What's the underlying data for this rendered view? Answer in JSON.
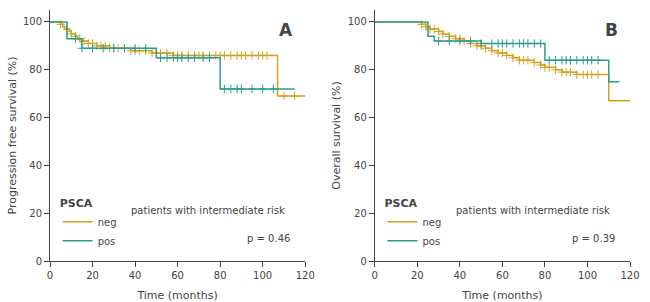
{
  "chart_data": [
    {
      "type": "step",
      "title": "A",
      "xlabel": "Time (months)",
      "ylabel": "Progression free survival (%)",
      "annotation": "patients with intermediate risk",
      "pvalue": "p = 0.46",
      "legend": "lower left",
      "legend_title": "PSCA",
      "grid": false,
      "xlim": [
        0,
        120
      ],
      "ylim": [
        0,
        105
      ],
      "xticks": [
        0,
        20,
        40,
        60,
        80,
        100,
        120
      ],
      "yticks": [
        0,
        20,
        40,
        60,
        80,
        100
      ],
      "series": [
        {
          "name": "neg",
          "color": "#D4A020",
          "marker": "cross",
          "x": [
            0,
            4,
            5,
            6,
            7,
            8,
            9,
            10,
            11,
            12,
            13,
            14,
            15,
            16,
            18,
            20,
            22,
            24,
            26,
            28,
            30,
            32,
            35,
            38,
            40,
            42,
            45,
            48,
            50,
            52,
            55,
            58,
            60,
            62,
            65,
            68,
            70,
            72,
            75,
            78,
            80,
            82,
            85,
            88,
            90,
            92,
            95,
            98,
            100,
            102,
            105,
            107,
            110,
            120
          ],
          "values": [
            100,
            100,
            99,
            98,
            97,
            97,
            96,
            95,
            95,
            94,
            93,
            93,
            92,
            92,
            91,
            91,
            90,
            90,
            90,
            89,
            89,
            89,
            89,
            88,
            88,
            88,
            88,
            87,
            87,
            87,
            87,
            86,
            86,
            86,
            86,
            86,
            86,
            86,
            86,
            86,
            86,
            86,
            86,
            86,
            86,
            86,
            86,
            86,
            86,
            86,
            86,
            69,
            69,
            69
          ],
          "censor_x": [
            5,
            8,
            10,
            12,
            14,
            16,
            18,
            20,
            22,
            24,
            26,
            28,
            30,
            32,
            35,
            38,
            40,
            42,
            45,
            48,
            50,
            52,
            55,
            58,
            60,
            62,
            65,
            68,
            70,
            72,
            75,
            78,
            80,
            82,
            85,
            88,
            90,
            92,
            95,
            98,
            100,
            102,
            110,
            115
          ],
          "censor_values": [
            99,
            97,
            95,
            94,
            93,
            92,
            91,
            91,
            90,
            90,
            90,
            89,
            89,
            89,
            89,
            88,
            88,
            88,
            88,
            87,
            87,
            87,
            87,
            86,
            86,
            86,
            86,
            86,
            86,
            86,
            86,
            86,
            86,
            86,
            86,
            86,
            86,
            86,
            86,
            86,
            86,
            86,
            69,
            69
          ]
        },
        {
          "name": "pos",
          "color": "#2A9D8F",
          "marker": "cross",
          "x": [
            0,
            5,
            8,
            15,
            20,
            25,
            30,
            35,
            40,
            45,
            50,
            55,
            58,
            60,
            62,
            65,
            68,
            70,
            75,
            78,
            80,
            85,
            90,
            95,
            100,
            105,
            107,
            110,
            115
          ],
          "values": [
            100,
            100,
            93,
            89,
            89,
            89,
            89,
            89,
            89,
            89,
            85,
            85,
            85,
            85,
            85,
            85,
            85,
            85,
            85,
            85,
            72,
            72,
            72,
            72,
            72,
            72,
            72,
            72,
            72
          ],
          "censor_x": [
            12,
            15,
            20,
            25,
            30,
            35,
            40,
            45,
            52,
            55,
            58,
            60,
            62,
            65,
            68,
            72,
            75,
            82,
            85,
            88,
            90,
            95,
            100,
            105
          ],
          "censor_values": [
            93,
            89,
            89,
            89,
            89,
            89,
            89,
            89,
            85,
            85,
            85,
            85,
            85,
            85,
            85,
            85,
            85,
            72,
            72,
            72,
            72,
            72,
            72,
            72
          ]
        }
      ]
    },
    {
      "type": "step",
      "title": "B",
      "xlabel": "Time (months)",
      "ylabel": "Overall survival (%)",
      "annotation": "patients with intermediate risk",
      "pvalue": "p = 0.39",
      "legend": "lower left",
      "legend_title": "PSCA",
      "grid": false,
      "xlim": [
        0,
        120
      ],
      "ylim": [
        0,
        105
      ],
      "xticks": [
        0,
        20,
        40,
        60,
        80,
        100,
        120
      ],
      "yticks": [
        0,
        20,
        40,
        60,
        80,
        100
      ],
      "series": [
        {
          "name": "neg",
          "color": "#D4A020",
          "marker": "cross",
          "x": [
            0,
            5,
            8,
            10,
            12,
            15,
            18,
            20,
            22,
            24,
            26,
            28,
            30,
            32,
            35,
            38,
            40,
            42,
            45,
            48,
            50,
            52,
            55,
            58,
            60,
            62,
            65,
            68,
            70,
            72,
            75,
            78,
            80,
            82,
            85,
            88,
            90,
            92,
            95,
            98,
            100,
            102,
            105,
            107,
            110,
            115,
            120
          ],
          "values": [
            100,
            100,
            100,
            100,
            100,
            100,
            100,
            100,
            99,
            98,
            97,
            97,
            96,
            95,
            94,
            93,
            93,
            92,
            91,
            90,
            90,
            89,
            88,
            87,
            87,
            86,
            85,
            84,
            84,
            84,
            83,
            82,
            81,
            81,
            80,
            79,
            79,
            79,
            78,
            78,
            78,
            78,
            78,
            78,
            67,
            67,
            67
          ],
          "censor_x": [
            22,
            24,
            26,
            28,
            30,
            32,
            35,
            38,
            40,
            42,
            45,
            48,
            50,
            52,
            55,
            58,
            60,
            62,
            65,
            68,
            70,
            72,
            75,
            78,
            80,
            82,
            85,
            88,
            90,
            92,
            95,
            98,
            100,
            102,
            105
          ],
          "censor_values": [
            99,
            98,
            97,
            97,
            96,
            95,
            94,
            93,
            93,
            92,
            91,
            90,
            90,
            89,
            88,
            87,
            87,
            86,
            85,
            84,
            84,
            84,
            83,
            82,
            81,
            81,
            80,
            79,
            79,
            79,
            78,
            78,
            78,
            78,
            78
          ]
        },
        {
          "name": "pos",
          "color": "#2A9D8F",
          "marker": "cross",
          "x": [
            0,
            5,
            10,
            15,
            20,
            22,
            25,
            28,
            30,
            35,
            40,
            45,
            50,
            55,
            60,
            62,
            65,
            68,
            70,
            72,
            75,
            78,
            80,
            85,
            90,
            95,
            100,
            105,
            107,
            110,
            115
          ],
          "values": [
            100,
            100,
            100,
            100,
            100,
            100,
            94,
            92,
            92,
            92,
            92,
            92,
            91,
            91,
            91,
            91,
            91,
            91,
            91,
            91,
            91,
            91,
            84,
            84,
            84,
            84,
            84,
            84,
            84,
            75,
            75
          ],
          "censor_x": [
            30,
            35,
            40,
            45,
            50,
            55,
            58,
            60,
            62,
            65,
            68,
            70,
            72,
            75,
            78,
            82,
            85,
            88,
            90,
            92,
            95,
            98,
            100,
            102,
            105
          ],
          "censor_values": [
            92,
            92,
            92,
            92,
            91,
            91,
            91,
            91,
            91,
            91,
            91,
            91,
            91,
            91,
            91,
            84,
            84,
            84,
            84,
            84,
            84,
            84,
            84,
            84,
            84
          ]
        }
      ]
    }
  ]
}
